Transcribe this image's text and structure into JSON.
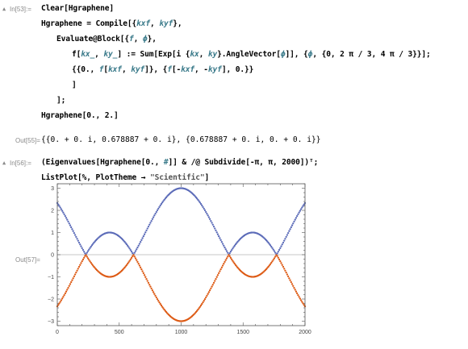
{
  "cells": {
    "in53": {
      "label": "In[53]:=",
      "line1": "Clear[Hgraphene]",
      "line2_a": "Hgraphene = Compile[{",
      "line2_v1": "kxf",
      "line2_sep": ", ",
      "line2_v2": "kyf",
      "line2_b": "},",
      "line3_a": "Evaluate@Block[{",
      "line3_v1": "f",
      "line3_sep": ", ",
      "line3_v2": "ϕ",
      "line3_b": "},",
      "line4_a": "f[",
      "line4_v1": "kx_",
      "line4_sep": ", ",
      "line4_v2": "ky_",
      "line4_b": "] := Sum[Exp[i {",
      "line4_v3": "kx",
      "line4_sep2": ", ",
      "line4_v4": "ky",
      "line4_c": "}.AngleVector[",
      "line4_v5": "ϕ",
      "line4_d": "]], {",
      "line4_v6": "ϕ",
      "line4_e": ", {0, 2 π / 3, 4 π / 3}}];",
      "line5_a": "{{0., ",
      "line5_v1": "f",
      "line5_b": "[",
      "line5_v2": "kxf",
      "line5_sep": ", ",
      "line5_v3": "kyf",
      "line5_c": "]}, {",
      "line5_v4": "f",
      "line5_d": "[-",
      "line5_v5": "kxf",
      "line5_e": ", -",
      "line5_v6": "kyf",
      "line5_f": "], 0.}}",
      "line6": "]",
      "line7": "];",
      "line8": "Hgraphene[0., 2.]"
    },
    "out55": {
      "label": "Out[55]=",
      "text": "{{0. + 0. i, 0.678887 + 0. i}, {0.678887 + 0. i, 0. + 0. i}}"
    },
    "in56": {
      "label": "In[56]:=",
      "line1_a": "(Eigenvalues[Hgraphene[0., ",
      "line1_v": "#",
      "line1_b": "]] & /@ Subdivide[-π, π, 2000])",
      "line1_c": "ᵀ;",
      "line2_a": "ListPlot[%, PlotTheme → ",
      "line2_str": "\"Scientific\"",
      "line2_b": "]"
    },
    "out57": {
      "label": "Out[57]="
    }
  },
  "chart_data": {
    "type": "scatter",
    "xlim": [
      0,
      2000
    ],
    "ylim": [
      -3.2,
      3.2
    ],
    "x_ticks": [
      0,
      500,
      1000,
      1500,
      2000
    ],
    "y_ticks": [
      -3,
      -2,
      -1,
      0,
      1,
      2,
      3
    ],
    "frame_ticks_all_sides": true,
    "zero_line": true,
    "series": [
      {
        "formula": "|1 + 2cos(sqrt(3)*(-pi + 2*pi*i/2000))|",
        "color": "#5b6bb8"
      },
      {
        "formula": "-|1 + 2cos(sqrt(3)*(-pi + 2*pi*i/2000))|",
        "color": "#dd5a14"
      }
    ]
  }
}
